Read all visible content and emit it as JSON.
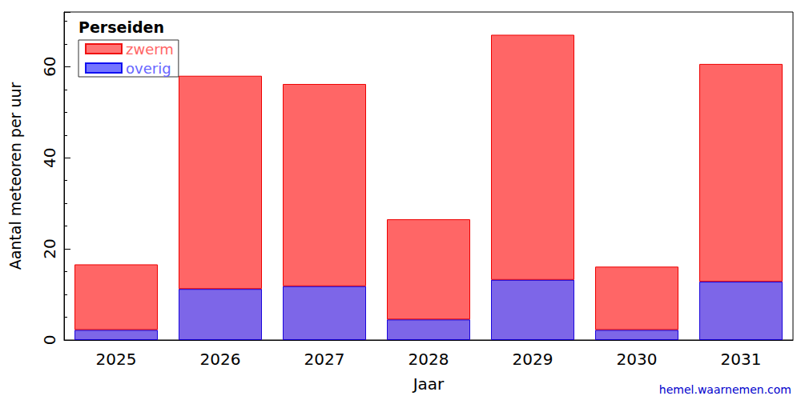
{
  "chart_data": {
    "type": "bar",
    "title": "Perseiden",
    "xlabel": "Jaar",
    "ylabel": "Aantal meteoren per uur",
    "annotation": "hemel.waarnemen.com",
    "categories": [
      "2025",
      "2026",
      "2027",
      "2028",
      "2029",
      "2030",
      "2031"
    ],
    "series": [
      {
        "name": "overig",
        "color": "#6666ff",
        "values": [
          2.2,
          11.2,
          11.8,
          4.5,
          13.2,
          2.2,
          12.8
        ]
      },
      {
        "name": "zwerm",
        "color": "#ff6666",
        "values": [
          14.4,
          46.8,
          44.4,
          22.0,
          53.8,
          13.9,
          47.8
        ]
      }
    ],
    "stacked": true,
    "ylim": [
      0,
      72
    ],
    "yticks": [
      0,
      20,
      40,
      60
    ],
    "grid": false,
    "legend": "upper left"
  }
}
